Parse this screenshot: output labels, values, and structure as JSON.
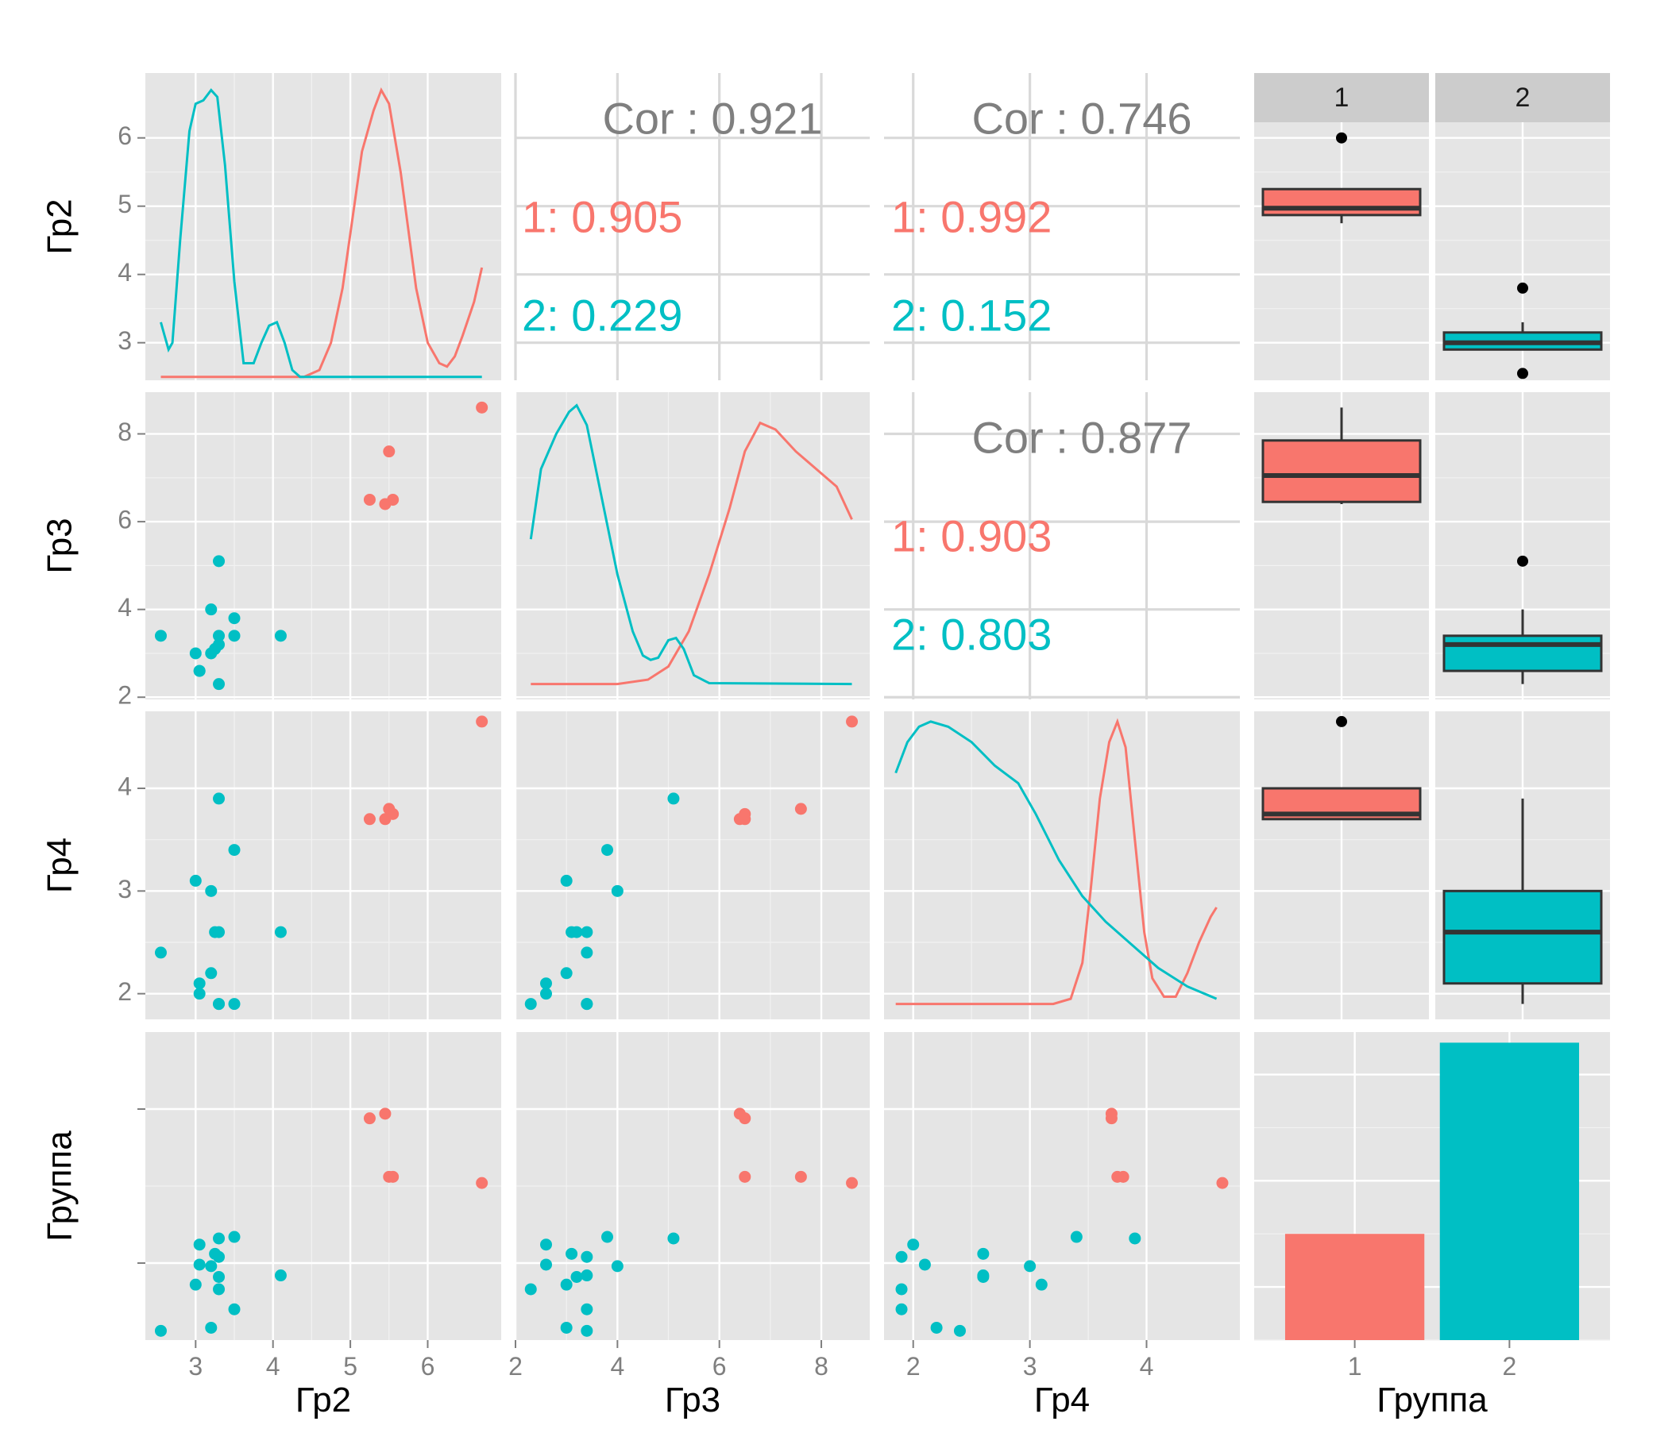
{
  "chart_data": {
    "type": "scatter-matrix",
    "variables": [
      "Гр2",
      "Гр3",
      "Гр4",
      "Группа"
    ],
    "groups": [
      "1",
      "2"
    ],
    "colors": {
      "1": "#f8766d",
      "2": "#00bfc4",
      "cor_total": "#7f7f7f"
    },
    "axes": {
      "Гр2": {
        "lim": [
          2.35,
          6.95
        ],
        "ticks": [
          3,
          4,
          5,
          6
        ],
        "labels": [
          "3",
          "4",
          "5",
          "6"
        ],
        "ylim": [
          2.45,
          6.95
        ],
        "yticks": [
          3,
          4,
          5,
          6
        ],
        "ylabels": [
          "3",
          "4",
          "5",
          "6"
        ]
      },
      "Гр3": {
        "lim": [
          2.0,
          8.95
        ],
        "ticks": [
          2,
          4,
          6,
          8
        ],
        "labels": [
          "2",
          "4",
          "6",
          "8"
        ],
        "ylim": [
          1.95,
          8.95
        ],
        "yticks": [
          2,
          4,
          6,
          8
        ],
        "ylabels": [
          "2",
          "4",
          "6",
          "8"
        ]
      },
      "Гр4": {
        "lim": [
          1.75,
          4.8
        ],
        "ticks": [
          2,
          3,
          4
        ],
        "labels": [
          "2",
          "3",
          "4"
        ],
        "ylim": [
          1.75,
          4.75
        ],
        "yticks": [
          2,
          3,
          4
        ],
        "ylabels": [
          "2",
          "3",
          "4"
        ]
      },
      "Группа": {
        "lim": [
          0.35,
          2.65
        ],
        "ticks": [
          1,
          2
        ],
        "labels": [
          "1",
          "2"
        ]
      }
    },
    "data": {
      "1": {
        "Гр2": [
          5.25,
          5.45,
          5.5,
          5.55,
          6.7
        ],
        "Гр3": [
          6.5,
          6.4,
          7.6,
          6.5,
          8.6
        ],
        "Гр4": [
          3.7,
          3.7,
          3.8,
          3.75,
          4.65
        ],
        "jitter": [
          1.44,
          1.47,
          1.06,
          1.06,
          1.02
        ]
      },
      "2": {
        "Гр2": [
          2.55,
          3.0,
          3.05,
          3.2,
          3.25,
          3.3,
          3.3,
          3.3,
          3.3,
          3.5,
          3.5,
          4.1,
          3.05,
          3.2
        ],
        "Гр3": [
          3.4,
          3.0,
          2.6,
          4.0,
          3.1,
          5.1,
          3.2,
          2.3,
          3.4,
          3.8,
          3.4,
          3.4,
          2.6,
          3.0
        ],
        "Гр4": [
          2.4,
          3.1,
          2.1,
          3.0,
          2.6,
          3.9,
          2.6,
          1.9,
          1.9,
          3.4,
          1.9,
          2.6,
          2.0,
          2.2
        ],
        "jitter": [
          0.06,
          0.36,
          0.49,
          0.48,
          0.56,
          0.66,
          0.41,
          0.33,
          0.54,
          0.67,
          0.2,
          0.42,
          0.62,
          0.08
        ]
      }
    },
    "correlations": [
      {
        "row": 0,
        "col": 1,
        "total": "Cor : 0.921",
        "g1": "1: 0.905",
        "g2": "2: 0.229"
      },
      {
        "row": 0,
        "col": 2,
        "total": "Cor : 0.746",
        "g1": "1: 0.992",
        "g2": "2: 0.152"
      },
      {
        "row": 1,
        "col": 2,
        "total": "Cor : 0.877",
        "g1": "1: 0.903",
        "g2": "2: 0.803"
      }
    ],
    "boxplots": {
      "Гр2": {
        "1": {
          "lower": 4.75,
          "q1": 4.87,
          "median": 4.97,
          "q3": 5.25,
          "upper": 5.25,
          "outliers": [
            6.0
          ]
        },
        "2": {
          "lower": 2.9,
          "q1": 2.9,
          "median": 3.0,
          "q3": 3.15,
          "upper": 3.3,
          "outliers": [
            3.8,
            2.55
          ]
        }
      },
      "Гр3": {
        "1": {
          "lower": 6.4,
          "q1": 6.45,
          "median": 7.05,
          "q3": 7.85,
          "upper": 8.6,
          "outliers": []
        },
        "2": {
          "lower": 2.3,
          "q1": 2.6,
          "median": 3.2,
          "q3": 3.4,
          "upper": 4.0,
          "outliers": [
            5.1
          ]
        }
      },
      "Гр4": {
        "1": {
          "lower": 3.7,
          "q1": 3.7,
          "median": 3.75,
          "q3": 4.0,
          "upper": 4.0,
          "outliers": [
            4.65
          ]
        },
        "2": {
          "lower": 1.9,
          "q1": 2.1,
          "median": 2.6,
          "q3": 3.0,
          "upper": 3.9,
          "outliers": []
        }
      }
    },
    "bar": {
      "categories": [
        "1",
        "2"
      ],
      "counts": [
        5,
        14
      ],
      "ylim": [
        0,
        14.5
      ]
    },
    "strip_labels": [
      "1",
      "2"
    ],
    "density_curves": {
      "Гр2": {
        "1": [
          [
            2.55,
            2.5
          ],
          [
            4.4,
            2.5
          ],
          [
            4.6,
            2.6
          ],
          [
            4.75,
            3.0
          ],
          [
            4.9,
            3.8
          ],
          [
            5.0,
            4.6
          ],
          [
            5.15,
            5.8
          ],
          [
            5.3,
            6.4
          ],
          [
            5.4,
            6.7
          ],
          [
            5.5,
            6.5
          ],
          [
            5.65,
            5.5
          ],
          [
            5.85,
            3.8
          ],
          [
            6.0,
            3.0
          ],
          [
            6.15,
            2.7
          ],
          [
            6.25,
            2.65
          ],
          [
            6.35,
            2.8
          ],
          [
            6.45,
            3.1
          ],
          [
            6.6,
            3.6
          ],
          [
            6.7,
            4.1
          ]
        ],
        "2": [
          [
            2.55,
            3.3
          ],
          [
            2.6,
            3.1
          ],
          [
            2.65,
            2.9
          ],
          [
            2.7,
            3.0
          ],
          [
            2.8,
            4.5
          ],
          [
            2.92,
            6.1
          ],
          [
            3.0,
            6.5
          ],
          [
            3.1,
            6.55
          ],
          [
            3.2,
            6.7
          ],
          [
            3.28,
            6.6
          ],
          [
            3.38,
            5.6
          ],
          [
            3.5,
            3.9
          ],
          [
            3.62,
            2.7
          ],
          [
            3.75,
            2.7
          ],
          [
            3.85,
            3.0
          ],
          [
            3.95,
            3.25
          ],
          [
            4.05,
            3.3
          ],
          [
            4.15,
            3.0
          ],
          [
            4.25,
            2.6
          ],
          [
            4.35,
            2.5
          ],
          [
            6.7,
            2.5
          ]
        ]
      },
      "Гр3": {
        "1": [
          [
            2.3,
            2.3
          ],
          [
            4.0,
            2.3
          ],
          [
            4.6,
            2.4
          ],
          [
            5.0,
            2.7
          ],
          [
            5.4,
            3.5
          ],
          [
            5.8,
            4.8
          ],
          [
            6.2,
            6.3
          ],
          [
            6.5,
            7.6
          ],
          [
            6.8,
            8.25
          ],
          [
            7.1,
            8.1
          ],
          [
            7.5,
            7.6
          ],
          [
            7.9,
            7.2
          ],
          [
            8.3,
            6.8
          ],
          [
            8.6,
            6.05
          ]
        ],
        "2": [
          [
            2.3,
            5.6
          ],
          [
            2.5,
            7.2
          ],
          [
            2.8,
            8.0
          ],
          [
            3.05,
            8.5
          ],
          [
            3.2,
            8.65
          ],
          [
            3.4,
            8.2
          ],
          [
            3.7,
            6.5
          ],
          [
            4.0,
            4.8
          ],
          [
            4.3,
            3.5
          ],
          [
            4.5,
            2.95
          ],
          [
            4.65,
            2.85
          ],
          [
            4.8,
            2.9
          ],
          [
            5.0,
            3.3
          ],
          [
            5.15,
            3.35
          ],
          [
            5.3,
            3.1
          ],
          [
            5.5,
            2.5
          ],
          [
            5.8,
            2.32
          ],
          [
            8.6,
            2.3
          ]
        ]
      },
      "Гр4": {
        "1": [
          [
            1.85,
            1.9
          ],
          [
            3.2,
            1.9
          ],
          [
            3.35,
            1.95
          ],
          [
            3.45,
            2.3
          ],
          [
            3.52,
            3.0
          ],
          [
            3.6,
            3.9
          ],
          [
            3.68,
            4.45
          ],
          [
            3.75,
            4.65
          ],
          [
            3.82,
            4.4
          ],
          [
            3.9,
            3.5
          ],
          [
            3.98,
            2.6
          ],
          [
            4.05,
            2.15
          ],
          [
            4.15,
            1.97
          ],
          [
            4.25,
            1.97
          ],
          [
            4.35,
            2.2
          ],
          [
            4.45,
            2.5
          ],
          [
            4.55,
            2.75
          ],
          [
            4.6,
            2.84
          ]
        ],
        "2": [
          [
            1.85,
            4.15
          ],
          [
            1.95,
            4.45
          ],
          [
            2.05,
            4.6
          ],
          [
            2.15,
            4.65
          ],
          [
            2.3,
            4.6
          ],
          [
            2.5,
            4.45
          ],
          [
            2.7,
            4.22
          ],
          [
            2.9,
            4.05
          ],
          [
            3.05,
            3.75
          ],
          [
            3.25,
            3.3
          ],
          [
            3.45,
            2.95
          ],
          [
            3.65,
            2.7
          ],
          [
            3.85,
            2.5
          ],
          [
            4.1,
            2.25
          ],
          [
            4.35,
            2.07
          ],
          [
            4.6,
            1.95
          ]
        ]
      }
    }
  }
}
